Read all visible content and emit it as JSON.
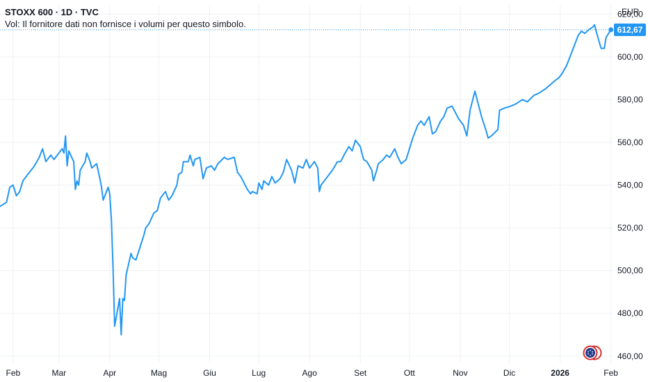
{
  "header": {
    "title": "STOXX 600 · 1D · TVC",
    "volume_notice": "Vol: Il fornitore dati non fornisce i volumi per questo simbolo."
  },
  "price_axis": {
    "currency": "EUR"
  },
  "colors": {
    "line": "#2196f3",
    "grid": "#eef0f3",
    "label_bg": "#2196f3",
    "text": "#131722"
  },
  "icons": {
    "corner": "tradingview-logo-icon"
  },
  "chart_data": {
    "type": "line",
    "title": "STOXX 600 · 1D · TVC",
    "ylabel": "",
    "xlabel": "",
    "ylim": [
      457,
      624
    ],
    "y_ticks": [
      "620,00",
      "600,00",
      "580,00",
      "560,00",
      "540,00",
      "520,00",
      "500,00",
      "480,00",
      "460,00"
    ],
    "y_tick_values": [
      620,
      600,
      580,
      560,
      540,
      520,
      500,
      480,
      460
    ],
    "x_ticks": [
      "Feb",
      "Mar",
      "Apr",
      "Mag",
      "Giu",
      "Lug",
      "Ago",
      "Set",
      "Ott",
      "Nov",
      "Dic",
      "2026",
      "Feb"
    ],
    "x_tick_dates": [
      "2025-02-01",
      "2025-03-01",
      "2025-04-01",
      "2025-05-01",
      "2025-06-01",
      "2025-07-01",
      "2025-08-01",
      "2025-09-01",
      "2025-10-01",
      "2025-11-01",
      "2025-12-01",
      "2026-01-01",
      "2026-02-01"
    ],
    "xlim": [
      "2025-01-24",
      "2026-02-02"
    ],
    "last_value": 612.67,
    "last_value_label": "612,67",
    "grid": true,
    "series": [
      {
        "points": [
          [
            "2025-01-24",
            530
          ],
          [
            "2025-01-28",
            532
          ],
          [
            "2025-01-30",
            539
          ],
          [
            "2025-02-01",
            540
          ],
          [
            "2025-02-03",
            535
          ],
          [
            "2025-02-05",
            537
          ],
          [
            "2025-02-07",
            542
          ],
          [
            "2025-02-10",
            545
          ],
          [
            "2025-02-12",
            547
          ],
          [
            "2025-02-14",
            549
          ],
          [
            "2025-02-17",
            553
          ],
          [
            "2025-02-19",
            557
          ],
          [
            "2025-02-21",
            551
          ],
          [
            "2025-02-24",
            554
          ],
          [
            "2025-02-26",
            552
          ],
          [
            "2025-02-28",
            554
          ],
          [
            "2025-03-03",
            557
          ],
          [
            "2025-03-04",
            555
          ],
          [
            "2025-03-05",
            563
          ],
          [
            "2025-03-06",
            549
          ],
          [
            "2025-03-07",
            556
          ],
          [
            "2025-03-10",
            551
          ],
          [
            "2025-03-11",
            538
          ],
          [
            "2025-03-12",
            542
          ],
          [
            "2025-03-13",
            540
          ],
          [
            "2025-03-14",
            547
          ],
          [
            "2025-03-17",
            551
          ],
          [
            "2025-03-18",
            555
          ],
          [
            "2025-03-19",
            553
          ],
          [
            "2025-03-20",
            551
          ],
          [
            "2025-03-21",
            548
          ],
          [
            "2025-03-24",
            550
          ],
          [
            "2025-03-26",
            543
          ],
          [
            "2025-03-27",
            539
          ],
          [
            "2025-03-28",
            533
          ],
          [
            "2025-03-31",
            539
          ],
          [
            "2025-04-01",
            536
          ],
          [
            "2025-04-02",
            524
          ],
          [
            "2025-04-03",
            502
          ],
          [
            "2025-04-04",
            474
          ],
          [
            "2025-04-07",
            487
          ],
          [
            "2025-04-08",
            470
          ],
          [
            "2025-04-09",
            487
          ],
          [
            "2025-04-10",
            486
          ],
          [
            "2025-04-11",
            498
          ],
          [
            "2025-04-14",
            508
          ],
          [
            "2025-04-15",
            506
          ],
          [
            "2025-04-17",
            505
          ],
          [
            "2025-04-22",
            517
          ],
          [
            "2025-04-23",
            520
          ],
          [
            "2025-04-25",
            522
          ],
          [
            "2025-04-28",
            527
          ],
          [
            "2025-04-30",
            528
          ],
          [
            "2025-05-02",
            534
          ],
          [
            "2025-05-05",
            537
          ],
          [
            "2025-05-07",
            533
          ],
          [
            "2025-05-09",
            535
          ],
          [
            "2025-05-12",
            540
          ],
          [
            "2025-05-13",
            545
          ],
          [
            "2025-05-15",
            546
          ],
          [
            "2025-05-16",
            551
          ],
          [
            "2025-05-19",
            551
          ],
          [
            "2025-05-20",
            554
          ],
          [
            "2025-05-22",
            549
          ],
          [
            "2025-05-23",
            552
          ],
          [
            "2025-05-26",
            553
          ],
          [
            "2025-05-28",
            543
          ],
          [
            "2025-05-30",
            548
          ],
          [
            "2025-06-02",
            549
          ],
          [
            "2025-06-04",
            547
          ],
          [
            "2025-06-06",
            550
          ],
          [
            "2025-06-10",
            553
          ],
          [
            "2025-06-12",
            552
          ],
          [
            "2025-06-16",
            553
          ],
          [
            "2025-06-18",
            546
          ],
          [
            "2025-06-20",
            544
          ],
          [
            "2025-06-24",
            538
          ],
          [
            "2025-06-26",
            536
          ],
          [
            "2025-06-27",
            537
          ],
          [
            "2025-06-30",
            536
          ],
          [
            "2025-07-01",
            541
          ],
          [
            "2025-07-03",
            538
          ],
          [
            "2025-07-04",
            542
          ],
          [
            "2025-07-07",
            540
          ],
          [
            "2025-07-09",
            544
          ],
          [
            "2025-07-11",
            541
          ],
          [
            "2025-07-14",
            543
          ],
          [
            "2025-07-16",
            546
          ],
          [
            "2025-07-18",
            552
          ],
          [
            "2025-07-21",
            547
          ],
          [
            "2025-07-23",
            541
          ],
          [
            "2025-07-25",
            549
          ],
          [
            "2025-07-28",
            548
          ],
          [
            "2025-07-30",
            552
          ],
          [
            "2025-08-01",
            548
          ],
          [
            "2025-08-04",
            551
          ],
          [
            "2025-08-06",
            548
          ],
          [
            "2025-08-07",
            537
          ],
          [
            "2025-08-08",
            540
          ],
          [
            "2025-08-11",
            543
          ],
          [
            "2025-08-13",
            545
          ],
          [
            "2025-08-15",
            547
          ],
          [
            "2025-08-18",
            551
          ],
          [
            "2025-08-20",
            551
          ],
          [
            "2025-08-22",
            554
          ],
          [
            "2025-08-25",
            558
          ],
          [
            "2025-08-27",
            556
          ],
          [
            "2025-08-29",
            561
          ],
          [
            "2025-09-01",
            558
          ],
          [
            "2025-09-03",
            552
          ],
          [
            "2025-09-05",
            551
          ],
          [
            "2025-09-08",
            547
          ],
          [
            "2025-09-09",
            542
          ],
          [
            "2025-09-11",
            547
          ],
          [
            "2025-09-12",
            550
          ],
          [
            "2025-09-15",
            552
          ],
          [
            "2025-09-17",
            554
          ],
          [
            "2025-09-19",
            553
          ],
          [
            "2025-09-22",
            557
          ],
          [
            "2025-09-24",
            553
          ],
          [
            "2025-09-26",
            550
          ],
          [
            "2025-09-29",
            552
          ],
          [
            "2025-10-01",
            557
          ],
          [
            "2025-10-03",
            562
          ],
          [
            "2025-10-06",
            568
          ],
          [
            "2025-10-08",
            570
          ],
          [
            "2025-10-10",
            568
          ],
          [
            "2025-10-13",
            572
          ],
          [
            "2025-10-15",
            564
          ],
          [
            "2025-10-17",
            565
          ],
          [
            "2025-10-20",
            570
          ],
          [
            "2025-10-22",
            572
          ],
          [
            "2025-10-24",
            576
          ],
          [
            "2025-10-27",
            577
          ],
          [
            "2025-10-29",
            574
          ],
          [
            "2025-10-31",
            571
          ],
          [
            "2025-11-03",
            568
          ],
          [
            "2025-11-05",
            563
          ],
          [
            "2025-11-07",
            575
          ],
          [
            "2025-11-10",
            584
          ],
          [
            "2025-11-12",
            578
          ],
          [
            "2025-11-14",
            572
          ],
          [
            "2025-11-17",
            565
          ],
          [
            "2025-11-18",
            562
          ],
          [
            "2025-11-20",
            563
          ],
          [
            "2025-11-24",
            566
          ],
          [
            "2025-11-25",
            575
          ],
          [
            "2025-11-28",
            576
          ],
          [
            "2025-12-02",
            577
          ],
          [
            "2025-12-05",
            578
          ],
          [
            "2025-12-09",
            580
          ],
          [
            "2025-12-12",
            579
          ],
          [
            "2025-12-16",
            582
          ],
          [
            "2025-12-19",
            583
          ],
          [
            "2025-12-23",
            585
          ],
          [
            "2025-12-29",
            589
          ],
          [
            "2025-12-31",
            590
          ],
          [
            "2026-01-02",
            592
          ],
          [
            "2026-01-05",
            596
          ],
          [
            "2026-01-07",
            600
          ],
          [
            "2026-01-09",
            604
          ],
          [
            "2026-01-12",
            610
          ],
          [
            "2026-01-14",
            612
          ],
          [
            "2026-01-16",
            611
          ],
          [
            "2026-01-19",
            613
          ],
          [
            "2026-01-21",
            614
          ],
          [
            "2026-01-22",
            615
          ],
          [
            "2026-01-23",
            612
          ],
          [
            "2026-01-26",
            604
          ],
          [
            "2026-01-28",
            604
          ],
          [
            "2026-01-29",
            609
          ],
          [
            "2026-02-01",
            612.67
          ]
        ]
      }
    ]
  }
}
